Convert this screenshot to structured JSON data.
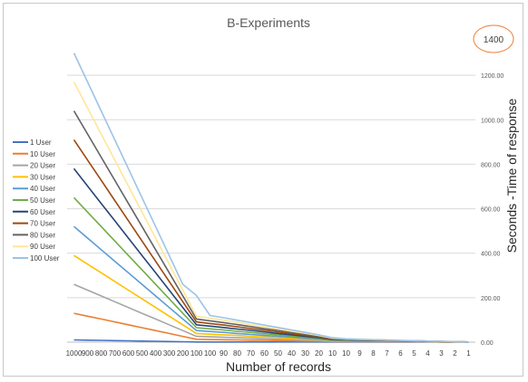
{
  "chart_data": {
    "type": "line",
    "title": "B-Experiments",
    "xlabel": "Number of records",
    "ylabel": "Seconds -Time of response",
    "y_ticks": [
      "0.00",
      "200.00",
      "400.00",
      "600.00",
      "800.00",
      "1000.00",
      "1200.00"
    ],
    "ylim": [
      0,
      1400
    ],
    "callout": "1400",
    "legend_position": "left",
    "grid": true,
    "categories": [
      "1000",
      "900",
      "800",
      "700",
      "600",
      "500",
      "400",
      "300",
      "200",
      "100",
      "100",
      "90",
      "80",
      "70",
      "60",
      "50",
      "40",
      "30",
      "20",
      "10",
      "10",
      "9",
      "8",
      "7",
      "6",
      "5",
      "4",
      "3",
      "2",
      "1"
    ],
    "series": [
      {
        "name": "1 User",
        "color": "#4472c4",
        "values": [
          10,
          9,
          8,
          7,
          6,
          5,
          4,
          3,
          2,
          1,
          1,
          1,
          1,
          1,
          1,
          1,
          1,
          1,
          1,
          1,
          1,
          1,
          1,
          1,
          1,
          1,
          1,
          1,
          1,
          1
        ]
      },
      {
        "name": "10 User",
        "color": "#ed7d31",
        "values": [
          130,
          117,
          104,
          91,
          78,
          65,
          52,
          39,
          26,
          13,
          12,
          11,
          10,
          9,
          8,
          7,
          6,
          5,
          4,
          3,
          3,
          3,
          3,
          2,
          2,
          2,
          2,
          1,
          1,
          1
        ]
      },
      {
        "name": "20 User",
        "color": "#a5a5a5",
        "values": [
          260,
          234,
          208,
          182,
          156,
          130,
          104,
          78,
          52,
          26,
          24,
          22,
          20,
          18,
          15,
          13,
          11,
          9,
          7,
          5,
          5,
          5,
          4,
          4,
          3,
          3,
          2,
          2,
          1,
          1
        ]
      },
      {
        "name": "30 User",
        "color": "#ffc000",
        "values": [
          390,
          351,
          312,
          273,
          234,
          195,
          156,
          117,
          78,
          39,
          36,
          33,
          30,
          26,
          23,
          20,
          16,
          13,
          10,
          7,
          7,
          6,
          6,
          5,
          4,
          4,
          3,
          2,
          2,
          1
        ]
      },
      {
        "name": "40 User",
        "color": "#5b9bd5",
        "values": [
          520,
          468,
          416,
          364,
          312,
          260,
          208,
          156,
          104,
          52,
          48,
          44,
          39,
          35,
          30,
          26,
          22,
          17,
          13,
          8,
          8,
          7,
          7,
          6,
          5,
          4,
          3,
          3,
          2,
          1
        ]
      },
      {
        "name": "50 User",
        "color": "#70ad47",
        "values": [
          650,
          585,
          520,
          455,
          390,
          325,
          260,
          195,
          130,
          65,
          60,
          55,
          49,
          44,
          38,
          33,
          27,
          22,
          16,
          10,
          9,
          8,
          7,
          7,
          6,
          5,
          4,
          3,
          2,
          1
        ]
      },
      {
        "name": "60 User",
        "color": "#264478",
        "values": [
          780,
          702,
          624,
          546,
          468,
          390,
          312,
          234,
          156,
          78,
          72,
          66,
          59,
          53,
          46,
          39,
          33,
          26,
          20,
          12,
          10,
          9,
          8,
          7,
          6,
          5,
          4,
          3,
          2,
          1
        ]
      },
      {
        "name": "70 User",
        "color": "#9e480e",
        "values": [
          910,
          819,
          728,
          637,
          546,
          455,
          364,
          273,
          182,
          91,
          84,
          77,
          69,
          61,
          54,
          46,
          38,
          31,
          23,
          14,
          12,
          10,
          9,
          8,
          7,
          6,
          5,
          3,
          2,
          1
        ]
      },
      {
        "name": "80 User",
        "color": "#636363",
        "values": [
          1040,
          936,
          832,
          728,
          624,
          520,
          416,
          312,
          208,
          104,
          96,
          88,
          79,
          70,
          61,
          53,
          44,
          35,
          26,
          16,
          13,
          11,
          10,
          9,
          7,
          6,
          5,
          4,
          2,
          1
        ]
      },
      {
        "name": "90 User",
        "color": "#ffe699",
        "values": [
          1170,
          1053,
          936,
          819,
          702,
          585,
          468,
          351,
          234,
          117,
          108,
          99,
          89,
          79,
          69,
          59,
          49,
          40,
          30,
          18,
          14,
          12,
          11,
          9,
          8,
          6,
          5,
          4,
          2,
          1
        ]
      },
      {
        "name": "100 User",
        "color": "#9dc3e6",
        "values": [
          1300,
          1170,
          1040,
          910,
          780,
          650,
          520,
          390,
          260,
          210,
          120,
          110,
          99,
          88,
          77,
          66,
          55,
          44,
          33,
          20,
          15,
          13,
          11,
          10,
          8,
          7,
          5,
          4,
          3,
          1
        ]
      }
    ]
  }
}
